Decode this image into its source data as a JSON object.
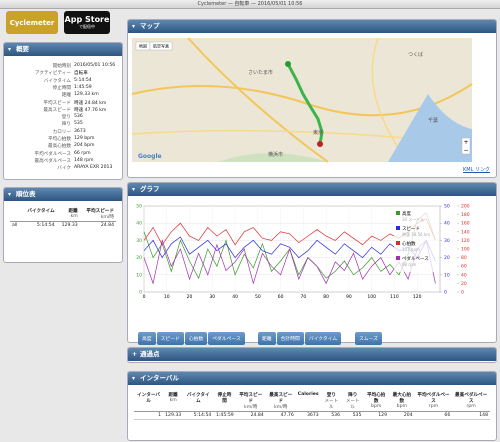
{
  "window_title": "Cyclemeter — 自転車 — 2016/05/01 10:56",
  "badges": {
    "app": "Cyclemeter",
    "store": "App Store",
    "store_sub": "で配信中"
  },
  "summary": {
    "title": "概要",
    "rows": [
      [
        "開始時刻",
        "2016/05/01 10:56"
      ],
      [
        "アクティビティー",
        "自転車"
      ],
      [
        "バイクタイム",
        "5:14:54"
      ],
      [
        "停止時間",
        "1:45:59"
      ],
      [
        "距離",
        "129.33 km"
      ],
      [
        "平均スピード",
        "時速 24.84 km"
      ],
      [
        "最高スピード",
        "時速 47.76 km"
      ],
      [
        "登り",
        "536"
      ],
      [
        "降り",
        "535"
      ],
      [
        "カロリー",
        "3673"
      ],
      [
        "平均心拍数",
        "129 bpm"
      ],
      [
        "最高心拍数",
        "204 bpm"
      ],
      [
        "平均ペダルペース",
        "66 rpm"
      ],
      [
        "最高ペダルペース",
        "148 rpm"
      ],
      [
        "バイク",
        "ARAYA EXR 2013"
      ]
    ]
  },
  "leaderboard": {
    "title": "順位表",
    "columns": [
      {
        "label": "バイクタイム"
      },
      {
        "label": "距離",
        "unit": "km"
      },
      {
        "label": "平均スピード",
        "unit": "km/時"
      }
    ],
    "rows": [
      {
        "name": "all",
        "cells": [
          "5:14:54",
          "129.33",
          "24.84"
        ]
      }
    ]
  },
  "map": {
    "title": "マップ",
    "tabs": [
      "地図",
      "航空写真"
    ],
    "places": [
      "さいたま市",
      "つくば",
      "東京",
      "千葉",
      "横浜市"
    ],
    "attribution": "Google",
    "link": "KML リンク"
  },
  "graph": {
    "title": "グラフ",
    "chart_data": {
      "type": "line",
      "x": [
        0,
        4,
        8,
        12,
        16,
        20,
        24,
        28,
        32,
        36,
        40,
        44,
        48,
        52,
        56,
        60,
        64,
        68,
        72,
        76,
        80,
        84,
        88,
        92,
        96,
        100,
        104,
        108,
        112,
        116,
        120,
        124,
        128
      ],
      "series": [
        {
          "name": "高度",
          "reading": "30 メートル",
          "color": "#3a9a2a",
          "axis": "y",
          "values": [
            35,
            20,
            28,
            12,
            30,
            18,
            8,
            25,
            15,
            30,
            10,
            22,
            14,
            28,
            12,
            18,
            25,
            10,
            20,
            15,
            8,
            12,
            18,
            10,
            14,
            20,
            12,
            16,
            10,
            22,
            42,
            46,
            30
          ]
        },
        {
          "name": "スピード",
          "reading": "時速 18.56 km",
          "color": "#2a2ae0",
          "axis": "y2",
          "values": [
            24,
            30,
            20,
            28,
            32,
            22,
            26,
            30,
            24,
            28,
            20,
            26,
            30,
            24,
            22,
            28,
            26,
            20,
            24,
            30,
            26,
            22,
            28,
            24,
            20,
            26,
            22,
            28,
            24,
            26,
            20,
            30,
            18
          ]
        },
        {
          "name": "心拍数",
          "reading": "137 bpm",
          "color": "#e02a2a",
          "axis": "y3",
          "values": [
            120,
            150,
            110,
            140,
            160,
            130,
            120,
            150,
            130,
            145,
            110,
            140,
            150,
            125,
            120,
            140,
            135,
            115,
            130,
            145,
            130,
            120,
            140,
            125,
            110,
            130,
            120,
            135,
            125,
            140,
            160,
            170,
            120
          ]
        },
        {
          "name": "ペダルペース",
          "reading": "68 rpm",
          "color": "#a030b0",
          "axis": "y3",
          "values": [
            80,
            20,
            120,
            60,
            100,
            30,
            90,
            40,
            110,
            50,
            70,
            100,
            20,
            90,
            60,
            40,
            100,
            30,
            80,
            60,
            20,
            70,
            50,
            90,
            30,
            60,
            80,
            40,
            70,
            30,
            100,
            120,
            20
          ]
        }
      ],
      "xlim": [
        0,
        130
      ],
      "xticks": [
        0,
        10,
        20,
        30,
        40,
        50,
        60,
        70,
        80,
        90,
        100,
        110,
        120
      ],
      "ylim": [
        0,
        50
      ],
      "yticks": [
        0,
        10,
        20,
        30,
        40,
        50
      ],
      "y2lim": [
        0,
        50
      ],
      "y2ticks": [
        0,
        10,
        20,
        30,
        40,
        50
      ],
      "y3lim": [
        0,
        200
      ],
      "y3ticks": [
        0,
        20,
        40,
        60,
        80,
        100,
        120,
        140,
        160,
        180,
        200
      ],
      "grid": true
    },
    "buttons": [
      [
        "高度",
        "スピード",
        "心拍数",
        "ペダルペース"
      ],
      [
        "距離",
        "合計時間",
        "バイクタイム"
      ],
      [
        "スムーズ"
      ]
    ]
  },
  "waypoints": {
    "title": "通過点"
  },
  "intervals": {
    "title": "インターバル",
    "columns": [
      {
        "label": "インターバル"
      },
      {
        "label": "距離",
        "unit": "km"
      },
      {
        "label": "バイクタイム"
      },
      {
        "label": "停止時間"
      },
      {
        "label": "平均スピード",
        "unit": "km/時"
      },
      {
        "label": "最高スピード",
        "unit": "km/時"
      },
      {
        "label": "Calories"
      },
      {
        "label": "登り",
        "unit": "メートル"
      },
      {
        "label": "降り",
        "unit": "メートル"
      },
      {
        "label": "平均心拍数",
        "unit": "bpm"
      },
      {
        "label": "最大心拍数",
        "unit": "bpm"
      },
      {
        "label": "平均ペダルペース",
        "unit": "rpm"
      },
      {
        "label": "最高ペダルペース",
        "unit": "rpm"
      }
    ],
    "rows": [
      [
        "1",
        "129.33",
        "5:14:54",
        "1:45:59",
        "24.84",
        "47.76",
        "3673",
        "536",
        "535",
        "129",
        "204",
        "66",
        "148"
      ]
    ]
  }
}
